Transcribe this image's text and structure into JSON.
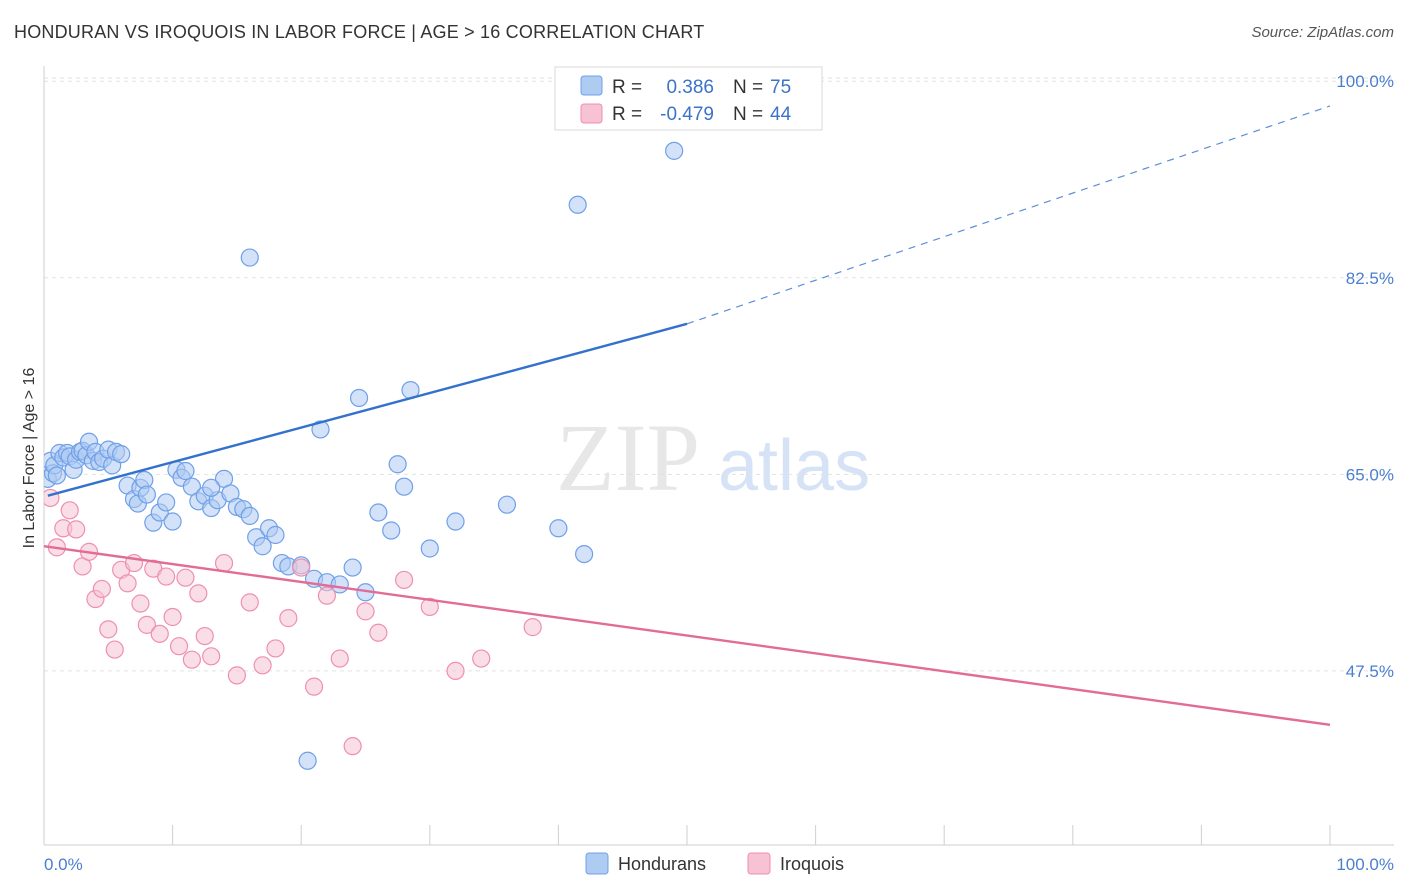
{
  "title": "HONDURAN VS IROQUOIS IN LABOR FORCE | AGE > 16 CORRELATION CHART",
  "source": "Source: ZipAtlas.com",
  "chart_data": {
    "type": "scatter",
    "ylabel": "In Labor Force | Age > 16",
    "xlabel": "",
    "xlim": [
      0,
      100
    ],
    "ylim": [
      32,
      101
    ],
    "x_tick_labels": [
      "0.0%",
      "100.0%"
    ],
    "y_ticks": [
      47.5,
      65.0,
      82.5,
      100.0
    ],
    "y_tick_labels": [
      "47.5%",
      "65.0%",
      "82.5%",
      "100.0%"
    ],
    "watermark": {
      "zip": "ZIP",
      "atlas": "atlas"
    },
    "legend": {
      "r_label": "R =",
      "n_label": "N =",
      "entries": [
        {
          "name": "Hondurans",
          "r": "0.386",
          "n": "75",
          "color": "#6fa0e8",
          "fill": "#aecbf2",
          "line": "#3372cc"
        },
        {
          "name": "Iroquois",
          "r": "-0.479",
          "n": "44",
          "color": "#ef8fb0",
          "fill": "#f6c2d4",
          "line": "#e26c97"
        }
      ]
    },
    "series": [
      {
        "name": "Hondurans",
        "trend": {
          "x0": 0.3,
          "y0": 63.1,
          "x1": 50.0,
          "y1": 78.4,
          "dash_to_x": 100.0,
          "dash_to_y": 97.8
        },
        "points": [
          [
            0.3,
            64.6
          ],
          [
            0.5,
            66.2
          ],
          [
            0.7,
            65.1
          ],
          [
            0.8,
            65.8
          ],
          [
            1.0,
            64.9
          ],
          [
            1.2,
            66.9
          ],
          [
            1.5,
            66.5
          ],
          [
            1.8,
            66.9
          ],
          [
            2.0,
            66.6
          ],
          [
            2.3,
            65.4
          ],
          [
            2.5,
            66.3
          ],
          [
            2.8,
            67.0
          ],
          [
            3.0,
            67.1
          ],
          [
            3.3,
            66.7
          ],
          [
            3.5,
            67.9
          ],
          [
            3.8,
            66.2
          ],
          [
            4.0,
            67.0
          ],
          [
            4.3,
            66.1
          ],
          [
            4.6,
            66.4
          ],
          [
            5.0,
            67.2
          ],
          [
            5.3,
            65.8
          ],
          [
            5.6,
            67.0
          ],
          [
            6.0,
            66.8
          ],
          [
            6.5,
            64.0
          ],
          [
            7.0,
            62.8
          ],
          [
            7.3,
            62.4
          ],
          [
            7.5,
            63.8
          ],
          [
            7.8,
            64.5
          ],
          [
            8.0,
            63.2
          ],
          [
            8.5,
            60.7
          ],
          [
            9.0,
            61.6
          ],
          [
            9.5,
            62.5
          ],
          [
            10.0,
            60.8
          ],
          [
            10.3,
            65.4
          ],
          [
            10.7,
            64.7
          ],
          [
            11.0,
            65.3
          ],
          [
            11.5,
            63.9
          ],
          [
            12.0,
            62.6
          ],
          [
            12.5,
            63.1
          ],
          [
            13.0,
            62.0
          ],
          [
            13.5,
            62.7
          ],
          [
            14.0,
            64.6
          ],
          [
            14.5,
            63.3
          ],
          [
            15.0,
            62.1
          ],
          [
            15.5,
            61.9
          ],
          [
            16.0,
            61.3
          ],
          [
            16.5,
            59.4
          ],
          [
            17.0,
            58.6
          ],
          [
            17.5,
            60.2
          ],
          [
            18.0,
            59.6
          ],
          [
            18.5,
            57.1
          ],
          [
            19.0,
            56.8
          ],
          [
            20.0,
            56.9
          ],
          [
            21.0,
            55.7
          ],
          [
            22.0,
            55.4
          ],
          [
            23.0,
            55.2
          ],
          [
            24.0,
            56.7
          ],
          [
            25.0,
            54.5
          ],
          [
            26.0,
            61.6
          ],
          [
            27.0,
            60.0
          ],
          [
            27.5,
            65.9
          ],
          [
            28.0,
            63.9
          ],
          [
            30.0,
            58.4
          ],
          [
            32.0,
            60.8
          ],
          [
            36.0,
            62.3
          ],
          [
            40.0,
            60.2
          ],
          [
            42.0,
            57.9
          ],
          [
            16.0,
            84.3
          ],
          [
            13.0,
            63.8
          ],
          [
            21.5,
            69.0
          ],
          [
            24.5,
            71.8
          ],
          [
            28.5,
            72.5
          ],
          [
            41.5,
            89.0
          ],
          [
            49.0,
            93.8
          ],
          [
            20.5,
            39.5
          ]
        ]
      },
      {
        "name": "Iroquois",
        "trend": {
          "x0": 0.0,
          "y0": 58.6,
          "x1": 100.0,
          "y1": 42.7
        },
        "points": [
          [
            0.5,
            62.9
          ],
          [
            1.0,
            58.5
          ],
          [
            1.5,
            60.2
          ],
          [
            2.0,
            61.8
          ],
          [
            2.5,
            60.1
          ],
          [
            3.0,
            56.8
          ],
          [
            3.5,
            58.1
          ],
          [
            4.0,
            53.9
          ],
          [
            4.5,
            54.8
          ],
          [
            5.0,
            51.2
          ],
          [
            5.5,
            49.4
          ],
          [
            6.0,
            56.5
          ],
          [
            6.5,
            55.3
          ],
          [
            7.0,
            57.1
          ],
          [
            7.5,
            53.5
          ],
          [
            8.0,
            51.6
          ],
          [
            8.5,
            56.6
          ],
          [
            9.0,
            50.8
          ],
          [
            9.5,
            55.9
          ],
          [
            10.0,
            52.3
          ],
          [
            10.5,
            49.7
          ],
          [
            11.0,
            55.8
          ],
          [
            11.5,
            48.5
          ],
          [
            12.0,
            54.4
          ],
          [
            12.5,
            50.6
          ],
          [
            13.0,
            48.8
          ],
          [
            14.0,
            57.1
          ],
          [
            15.0,
            47.1
          ],
          [
            16.0,
            53.6
          ],
          [
            17.0,
            48.0
          ],
          [
            18.0,
            49.5
          ],
          [
            19.0,
            52.2
          ],
          [
            20.0,
            56.7
          ],
          [
            21.0,
            46.1
          ],
          [
            22.0,
            54.2
          ],
          [
            23.0,
            48.6
          ],
          [
            24.0,
            40.8
          ],
          [
            25.0,
            52.8
          ],
          [
            26.0,
            50.9
          ],
          [
            28.0,
            55.6
          ],
          [
            30.0,
            53.2
          ],
          [
            32.0,
            47.5
          ],
          [
            34.0,
            48.6
          ],
          [
            38.0,
            51.4
          ]
        ]
      }
    ]
  }
}
